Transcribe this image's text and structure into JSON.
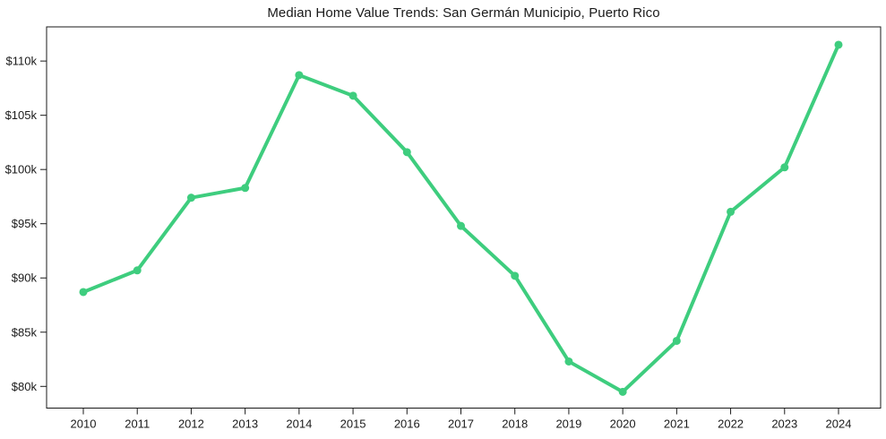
{
  "chart_data": {
    "type": "line",
    "title": "Median Home Value Trends: San Germán Municipio, Puerto Rico",
    "xlabel": "",
    "ylabel": "",
    "x": [
      2010,
      2011,
      2012,
      2013,
      2014,
      2015,
      2016,
      2017,
      2018,
      2019,
      2020,
      2021,
      2022,
      2023,
      2024
    ],
    "series": [
      {
        "name": "Median Home Value",
        "values": [
          88700,
          90700,
          97400,
          98300,
          108700,
          106800,
          101600,
          94800,
          90200,
          82300,
          79500,
          84200,
          96100,
          100200,
          111500
        ]
      }
    ],
    "yticks": [
      {
        "label": "$110k",
        "value": 110000
      },
      {
        "label": "$105k",
        "value": 105000
      },
      {
        "label": "$100k",
        "value": 100000
      },
      {
        "label": "$95k",
        "value": 95000
      },
      {
        "label": "$90k",
        "value": 90000
      },
      {
        "label": "$85k",
        "value": 85000
      },
      {
        "label": "$80k",
        "value": 80000
      }
    ],
    "ylim": [
      78000,
      113150
    ],
    "grid": false,
    "legend": null,
    "line_color": "#3ecd7e",
    "marker": "circle",
    "text_color": "#1a1a1a",
    "background_color": "#ffffff"
  }
}
